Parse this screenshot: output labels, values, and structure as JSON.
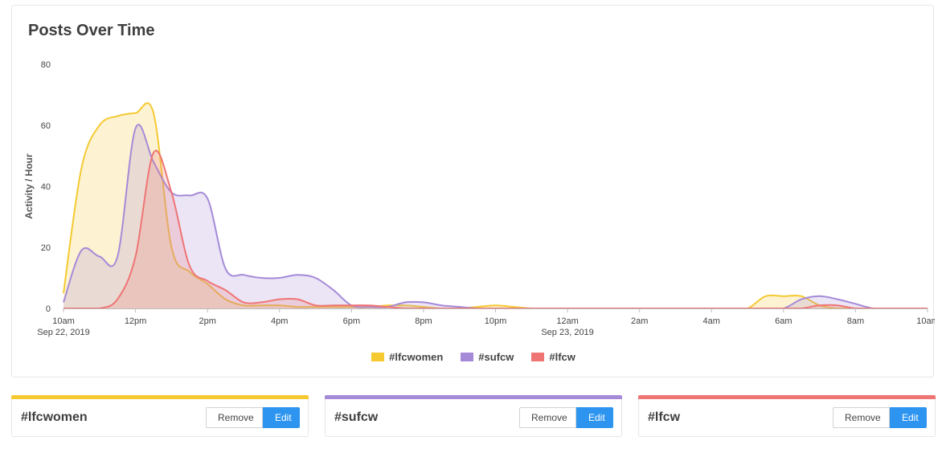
{
  "title": "Posts Over Time",
  "chart_data": {
    "type": "area",
    "ylabel": "Activity / Hour",
    "xlabel": "",
    "ylim": [
      0,
      80
    ],
    "yticks": [
      0,
      20,
      40,
      60,
      80
    ],
    "x_hours": [
      10,
      10.5,
      11,
      11.5,
      12,
      12.5,
      13,
      13.5,
      14,
      14.5,
      15,
      15.5,
      16,
      16.5,
      17,
      17.5,
      18,
      18.5,
      19,
      19.5,
      20,
      20.5,
      21,
      21.5,
      22,
      22.5,
      23,
      23.5,
      24,
      24.5,
      25,
      25.5,
      26,
      26.5,
      27,
      27.5,
      28,
      28.5,
      29,
      29.5,
      30,
      30.5,
      31,
      31.5,
      32,
      32.5,
      33,
      33.5,
      34
    ],
    "xticks": [
      {
        "h": 10,
        "label": "10am",
        "sub": "Sep 22, 2019"
      },
      {
        "h": 12,
        "label": "12pm",
        "sub": ""
      },
      {
        "h": 14,
        "label": "2pm",
        "sub": ""
      },
      {
        "h": 16,
        "label": "4pm",
        "sub": ""
      },
      {
        "h": 18,
        "label": "6pm",
        "sub": ""
      },
      {
        "h": 20,
        "label": "8pm",
        "sub": ""
      },
      {
        "h": 22,
        "label": "10pm",
        "sub": ""
      },
      {
        "h": 24,
        "label": "12am",
        "sub": "Sep 23, 2019"
      },
      {
        "h": 26,
        "label": "2am",
        "sub": ""
      },
      {
        "h": 28,
        "label": "4am",
        "sub": ""
      },
      {
        "h": 30,
        "label": "6am",
        "sub": ""
      },
      {
        "h": 32,
        "label": "8am",
        "sub": ""
      },
      {
        "h": 34,
        "label": "10am",
        "sub": ""
      }
    ],
    "series": [
      {
        "name": "#lfcwomen",
        "color": "#f5c932",
        "fill": "rgba(245,201,50,0.22)",
        "values": [
          5,
          46,
          60,
          63,
          64,
          64,
          20,
          12,
          8,
          3,
          1,
          1,
          1,
          0.5,
          0.5,
          0.5,
          0.5,
          0.5,
          1,
          1,
          0.5,
          0,
          0,
          0.5,
          1,
          0.5,
          0,
          0,
          0,
          0,
          0,
          0,
          0,
          0,
          0,
          0,
          0,
          0,
          0,
          4,
          4,
          4,
          1,
          0,
          0,
          0,
          0,
          0,
          0
        ]
      },
      {
        "name": "#sufcw",
        "color": "#a58ad8",
        "fill": "rgba(165,138,216,0.22)",
        "values": [
          2,
          19,
          17,
          17,
          59,
          48,
          38,
          37,
          36,
          13,
          11,
          10,
          10,
          11,
          10,
          6,
          1,
          0.5,
          0.5,
          2,
          2,
          1,
          0.5,
          0,
          0,
          0,
          0,
          0,
          0,
          0,
          0,
          0,
          0,
          0,
          0,
          0,
          0,
          0,
          0,
          0,
          0,
          3,
          4,
          3,
          1.5,
          0,
          0,
          0,
          0
        ]
      },
      {
        "name": "#lfcw",
        "color": "#ef7575",
        "fill": "rgba(239,117,117,0.22)",
        "values": [
          0,
          0,
          0,
          3,
          17,
          51,
          38,
          14,
          9,
          6,
          2,
          2,
          3,
          3,
          1,
          1,
          1,
          1,
          0.5,
          0,
          0,
          0,
          0,
          0,
          0,
          0,
          0,
          0,
          0,
          0,
          0,
          0,
          0,
          0,
          0,
          0,
          0,
          0,
          0,
          0,
          0,
          0,
          1,
          1,
          0,
          0,
          0,
          0,
          0
        ]
      }
    ],
    "legend_position": "bottom"
  },
  "tags": [
    {
      "name": "#lfcwomen",
      "color": "#f5c932",
      "remove_label": "Remove",
      "edit_label": "Edit"
    },
    {
      "name": "#sufcw",
      "color": "#a58ad8",
      "remove_label": "Remove",
      "edit_label": "Edit"
    },
    {
      "name": "#lfcw",
      "color": "#ef7575",
      "remove_label": "Remove",
      "edit_label": "Edit"
    }
  ]
}
